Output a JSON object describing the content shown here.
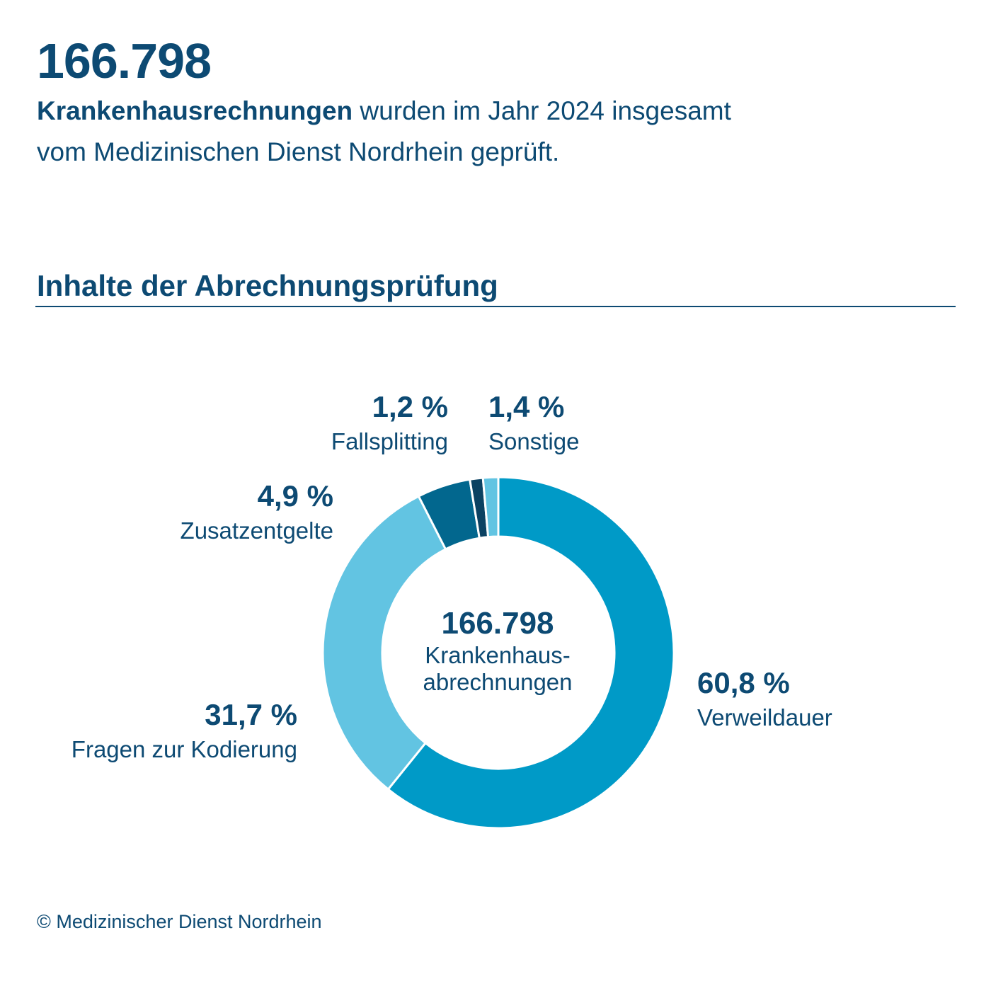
{
  "header": {
    "total": "166.798",
    "intro_bold": "Krankenhausrechnungen",
    "intro_line1_rest": " wurden im Jahr 2024 insgesamt",
    "intro_line2": "vom Medizinischen Dienst Nordrhein geprüft."
  },
  "section_title": "Inhalte der Abrechnungsprüfung",
  "donut_center": {
    "value": "166.798",
    "line1": "Krankenhaus-",
    "line2": "abrechnungen"
  },
  "chart_data": {
    "type": "pie",
    "variant": "donut",
    "title": "Inhalte der Abrechnungsprüfung",
    "unit": "%",
    "categories": [
      "Verweildauer",
      "Fragen zur Kodierung",
      "Zusatzentgelte",
      "Fallsplitting",
      "Sonstige"
    ],
    "values": [
      60.8,
      31.7,
      4.9,
      1.2,
      1.4
    ],
    "value_labels": [
      "60,8 %",
      "31,7 %",
      "4,9 %",
      "1,2 %",
      "1,4 %"
    ],
    "colors": [
      "#009ac7",
      "#62c4e2",
      "#02678e",
      "#0b4262",
      "#62c4e2"
    ]
  },
  "copyright": "© Medizinischer Dienst Nordrhein"
}
